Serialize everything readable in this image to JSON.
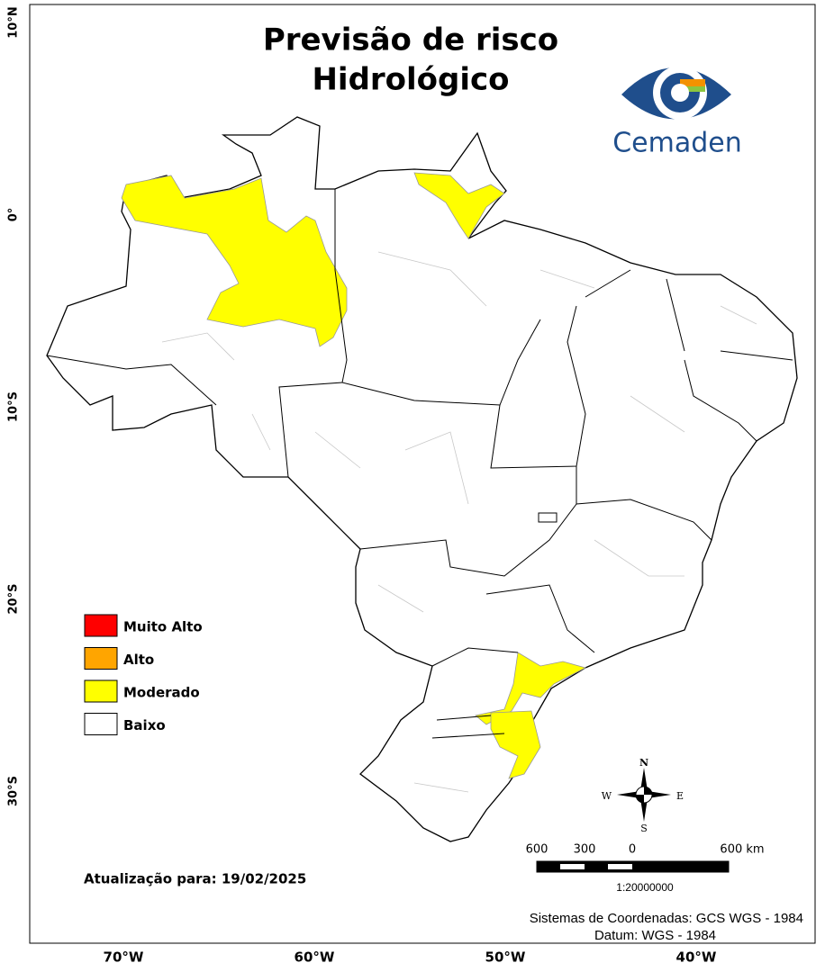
{
  "title": [
    "Previsão de risco",
    "Hidrológico"
  ],
  "logo": "Cemaden",
  "legend": [
    {
      "label": "Muito Alto",
      "color": "#ff0000"
    },
    {
      "label": "Alto",
      "color": "#ffa500"
    },
    {
      "label": "Moderado",
      "color": "#ffff00"
    },
    {
      "label": "Baixo",
      "color": "#ffffff"
    }
  ],
  "latitude_labels": [
    "10°N",
    "0°",
    "10°S",
    "20°S",
    "30°S"
  ],
  "longitude_labels": [
    "70°W",
    "60°W",
    "50°W",
    "40°W"
  ],
  "update": "Atualização para: 19/02/2025",
  "scale": {
    "labels": [
      "600",
      "300",
      "0",
      "600 km"
    ],
    "ratio": "1:20000000"
  },
  "compass": {
    "n": "N",
    "s": "S",
    "e": "E",
    "w": "W"
  },
  "footer": [
    "Sistemas de Coordenadas: GCS WGS - 1984",
    "Datum: WGS - 1984"
  ]
}
